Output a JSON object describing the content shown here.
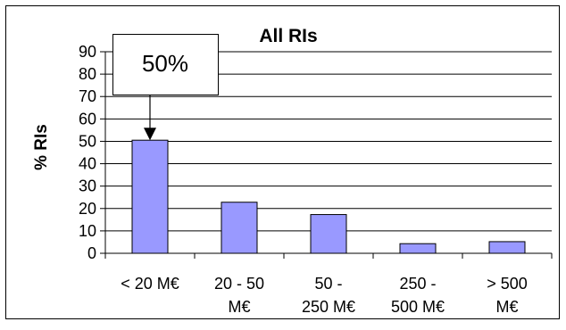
{
  "chart_data": {
    "type": "bar",
    "title": "All RIs",
    "ylabel": "% RIs",
    "xlabel": "",
    "ylim": [
      0,
      90
    ],
    "yticks": [
      0,
      10,
      20,
      30,
      40,
      50,
      60,
      70,
      80,
      90
    ],
    "categories": [
      [
        "< 20 M€"
      ],
      [
        "20 - 50",
        "M€"
      ],
      [
        "50 -",
        "250 M€"
      ],
      [
        "250 -",
        "500 M€"
      ],
      [
        "> 500",
        "M€"
      ]
    ],
    "values": [
      50.5,
      22.8,
      17.3,
      4.3,
      5.2
    ],
    "grid": true,
    "bar_color": "#9999ff",
    "annotation": {
      "text": "50%",
      "category_index": 0
    }
  }
}
